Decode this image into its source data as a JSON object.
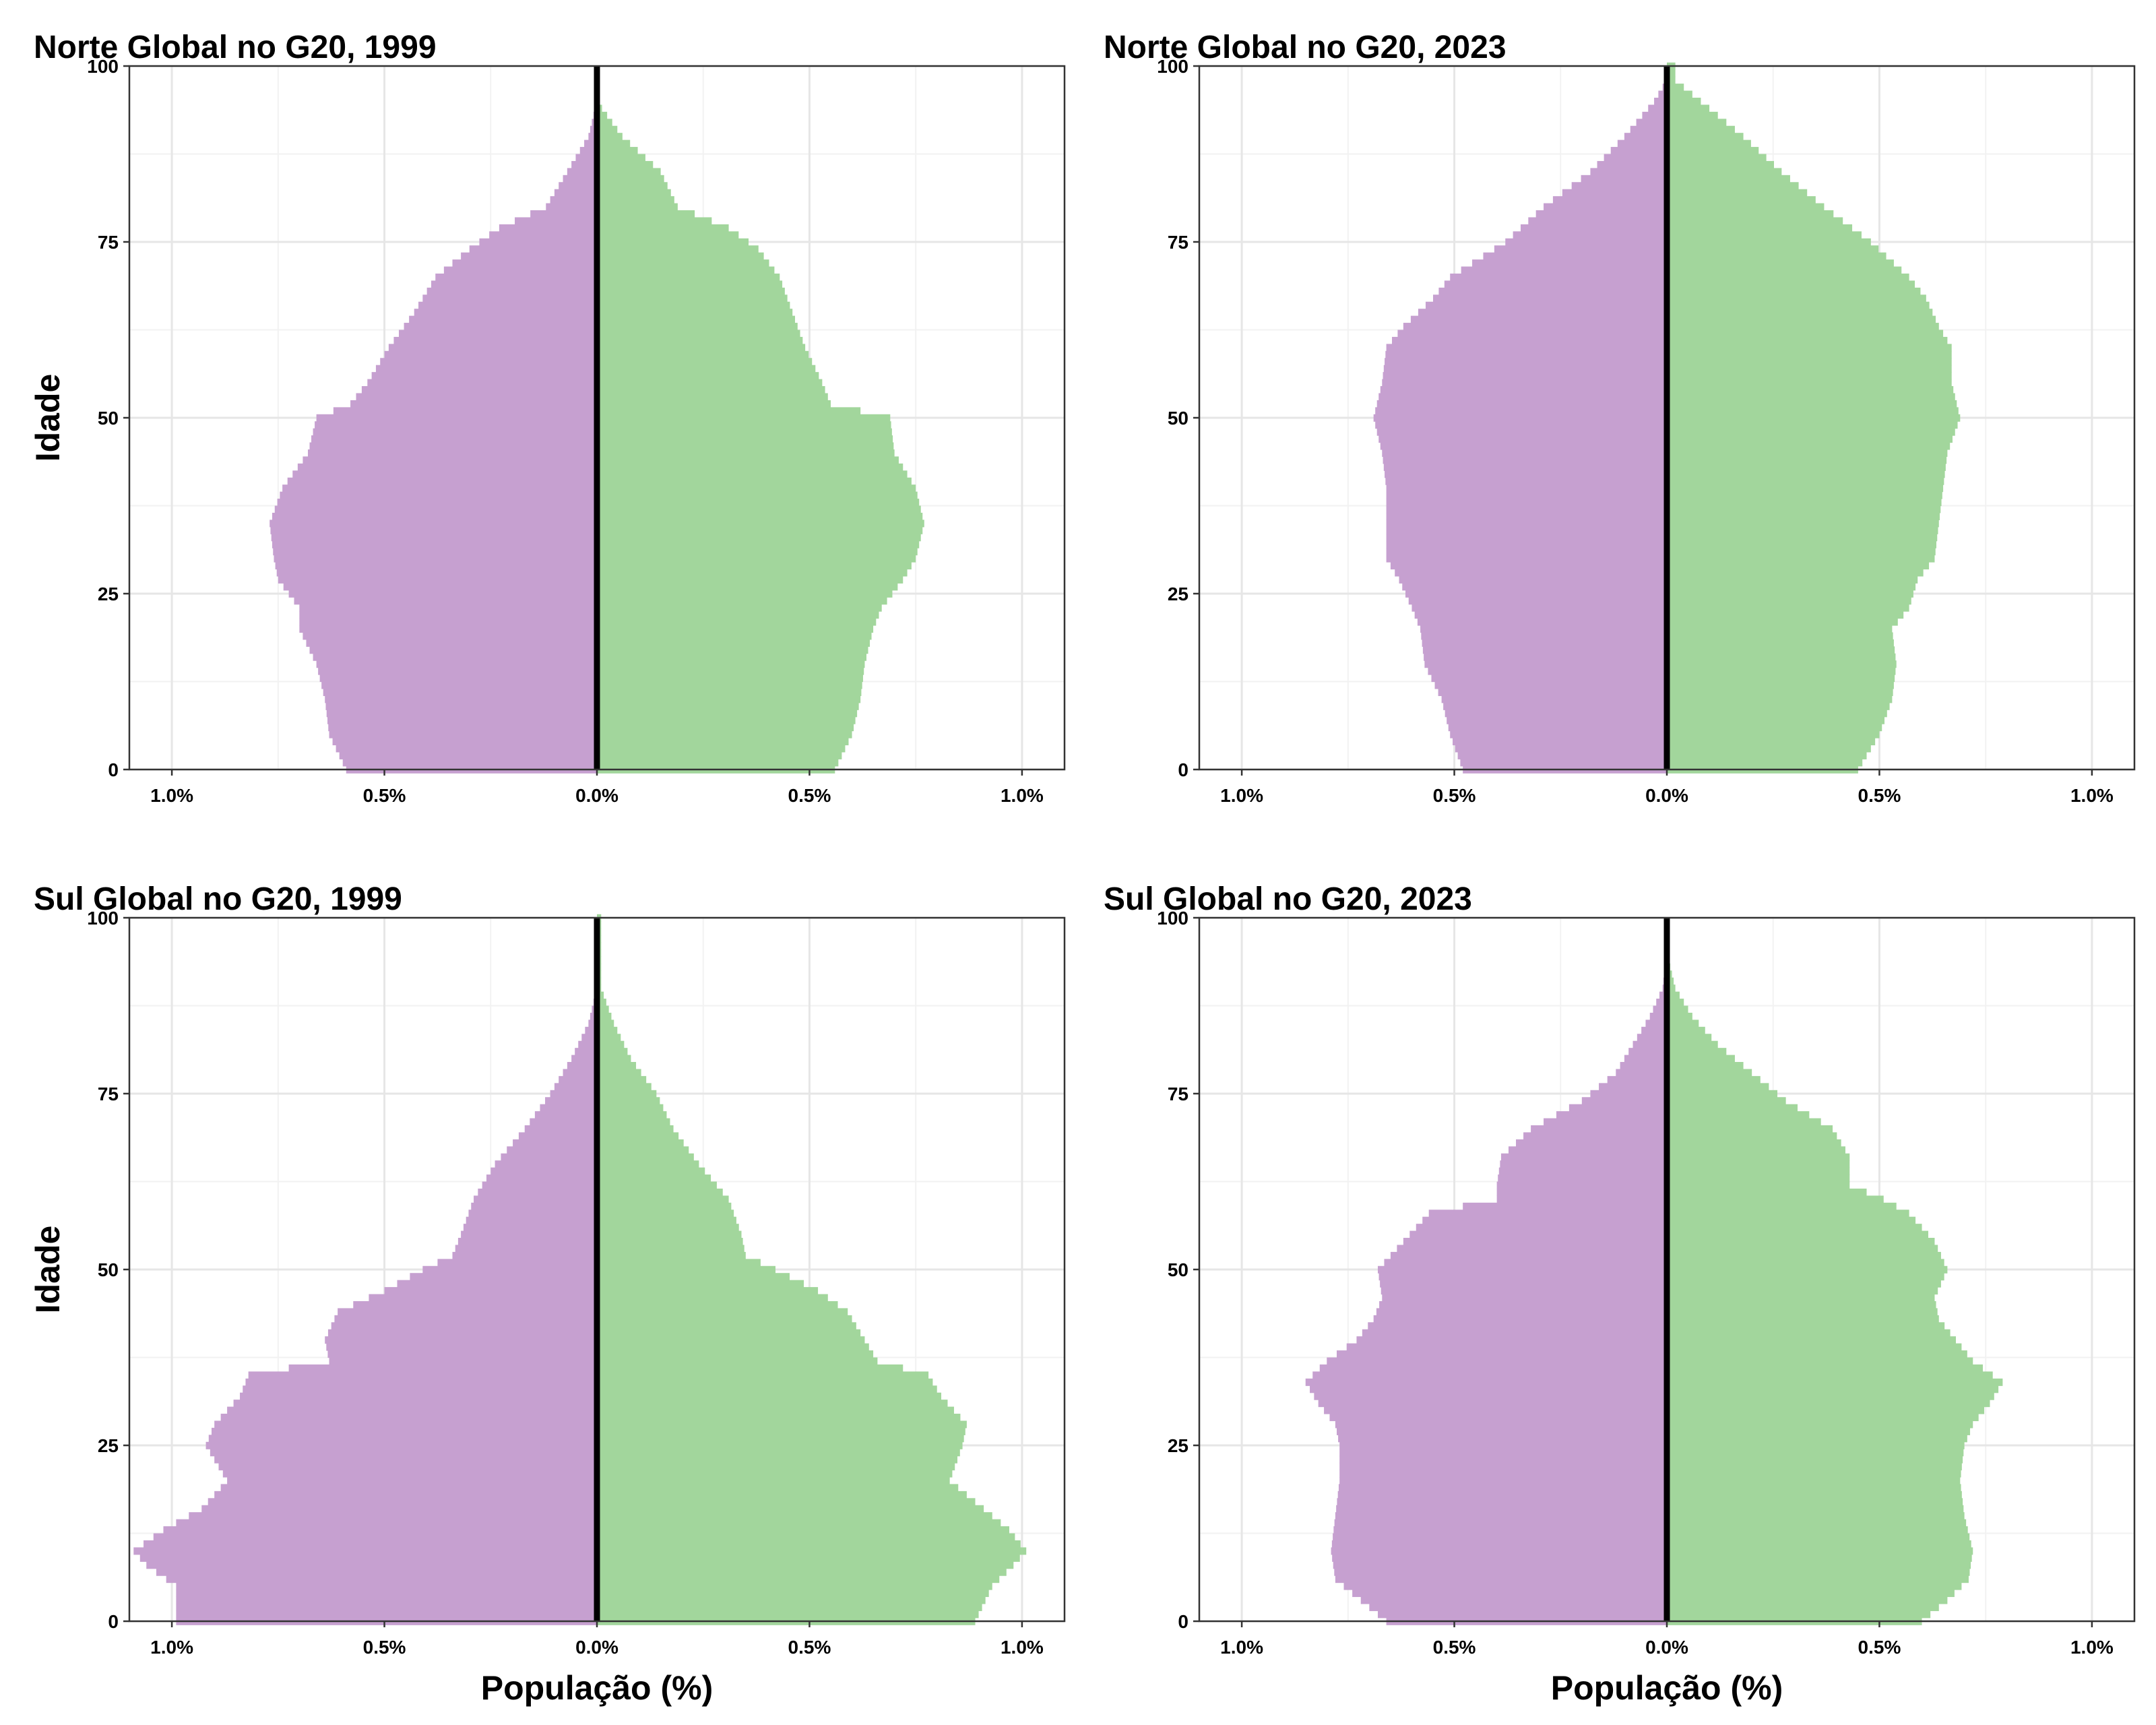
{
  "colors": {
    "left": "#c6a0d0",
    "right": "#a2d69c",
    "center_line": "#000000"
  },
  "chart_data": [
    {
      "type": "bar",
      "orientation": "horizontal-pyramid",
      "title": "Norte Global no G20, 1999",
      "ylabel": "Idade",
      "xlabel": "",
      "xlim": [
        -1.1,
        1.1
      ],
      "ylim": [
        0,
        100
      ],
      "x_ticks": [
        "1.0%",
        "0.5%",
        "0.0%",
        "0.5%",
        "1.0%"
      ],
      "y_ticks": [
        "0",
        "25",
        "50",
        "75",
        "100"
      ],
      "grid": true,
      "profile_ages": [
        0,
        5,
        10,
        15,
        20,
        23,
        27,
        30,
        35,
        40,
        45,
        50,
        52,
        55,
        60,
        65,
        70,
        74,
        77,
        80,
        85,
        90,
        95
      ],
      "series": [
        {
          "side": "left",
          "values": [
            0.59,
            0.63,
            0.64,
            0.66,
            0.7,
            0.7,
            0.75,
            0.76,
            0.77,
            0.74,
            0.68,
            0.66,
            0.58,
            0.54,
            0.49,
            0.43,
            0.38,
            0.3,
            0.23,
            0.12,
            0.07,
            0.02,
            0.0
          ]
        },
        {
          "side": "right",
          "values": [
            0.56,
            0.6,
            0.62,
            0.63,
            0.65,
            0.67,
            0.72,
            0.75,
            0.77,
            0.75,
            0.7,
            0.69,
            0.55,
            0.53,
            0.49,
            0.46,
            0.43,
            0.38,
            0.31,
            0.19,
            0.15,
            0.06,
            0.0
          ]
        }
      ]
    },
    {
      "type": "bar",
      "orientation": "horizontal-pyramid",
      "title": "Norte Global no G20, 2023",
      "ylabel": "",
      "xlabel": "",
      "xlim": [
        -1.1,
        1.1
      ],
      "ylim": [
        0,
        100
      ],
      "x_ticks": [
        "1.0%",
        "0.5%",
        "0.0%",
        "0.5%",
        "1.0%"
      ],
      "y_ticks": [
        "0",
        "25",
        "50",
        "75",
        "100"
      ],
      "grid": true,
      "profile_ages": [
        0,
        5,
        10,
        15,
        20,
        23,
        27,
        30,
        35,
        40,
        45,
        50,
        55,
        60,
        63,
        67,
        70,
        75,
        80,
        85,
        90,
        95,
        98
      ],
      "series": [
        {
          "side": "left",
          "values": [
            0.48,
            0.51,
            0.53,
            0.57,
            0.58,
            0.6,
            0.63,
            0.66,
            0.66,
            0.66,
            0.67,
            0.69,
            0.67,
            0.66,
            0.62,
            0.55,
            0.51,
            0.38,
            0.29,
            0.18,
            0.1,
            0.03,
            0.0
          ]
        },
        {
          "side": "right",
          "values": [
            0.45,
            0.5,
            0.53,
            0.54,
            0.53,
            0.57,
            0.59,
            0.63,
            0.64,
            0.65,
            0.66,
            0.69,
            0.67,
            0.67,
            0.64,
            0.61,
            0.57,
            0.48,
            0.37,
            0.27,
            0.18,
            0.08,
            0.02
          ]
        }
      ]
    },
    {
      "type": "bar",
      "orientation": "horizontal-pyramid",
      "title": "Sul Global no G20, 1999",
      "ylabel": "Idade",
      "xlabel": "População (%)",
      "xlim": [
        -1.1,
        1.1
      ],
      "ylim": [
        0,
        100
      ],
      "x_ticks": [
        "1.0%",
        "0.5%",
        "0.0%",
        "0.5%",
        "1.0%"
      ],
      "y_ticks": [
        "0",
        "25",
        "50",
        "75",
        "100"
      ],
      "grid": true,
      "profile_ages": [
        0,
        5,
        8,
        10,
        13,
        16,
        20,
        25,
        28,
        32,
        35,
        37,
        40,
        44,
        47,
        50,
        52,
        55,
        60,
        65,
        70,
        75,
        80,
        85,
        90
      ],
      "series": [
        {
          "side": "left",
          "values": [
            0.99,
            0.99,
            1.06,
            1.09,
            1.02,
            0.93,
            0.87,
            0.92,
            0.9,
            0.84,
            0.82,
            0.63,
            0.64,
            0.61,
            0.5,
            0.41,
            0.34,
            0.32,
            0.29,
            0.24,
            0.17,
            0.11,
            0.06,
            0.02,
            0.0
          ]
        },
        {
          "side": "right",
          "values": [
            0.89,
            0.93,
            0.98,
            1.01,
            0.97,
            0.91,
            0.83,
            0.86,
            0.87,
            0.81,
            0.78,
            0.66,
            0.63,
            0.59,
            0.52,
            0.42,
            0.35,
            0.34,
            0.31,
            0.24,
            0.18,
            0.14,
            0.08,
            0.04,
            0.01
          ]
        }
      ]
    },
    {
      "type": "bar",
      "orientation": "horizontal-pyramid",
      "title": "Sul Global no G20, 2023",
      "ylabel": "",
      "xlabel": "População (%)",
      "xlim": [
        -1.1,
        1.1
      ],
      "ylim": [
        0,
        100
      ],
      "x_ticks": [
        "1.0%",
        "0.5%",
        "0.0%",
        "0.5%",
        "1.0%"
      ],
      "y_ticks": [
        "0",
        "25",
        "50",
        "75",
        "100"
      ],
      "grid": true,
      "profile_ages": [
        0,
        3,
        6,
        10,
        15,
        20,
        25,
        28,
        31,
        34,
        37,
        40,
        43,
        46,
        50,
        54,
        58,
        60,
        62,
        66,
        70,
        74,
        78,
        82,
        86,
        90,
        95
      ],
      "series": [
        {
          "side": "left",
          "values": [
            0.66,
            0.72,
            0.78,
            0.79,
            0.78,
            0.77,
            0.77,
            0.78,
            0.82,
            0.85,
            0.8,
            0.73,
            0.69,
            0.67,
            0.68,
            0.62,
            0.56,
            0.4,
            0.4,
            0.39,
            0.32,
            0.2,
            0.12,
            0.08,
            0.04,
            0.01,
            0.0
          ]
        },
        {
          "side": "right",
          "values": [
            0.6,
            0.66,
            0.71,
            0.72,
            0.7,
            0.69,
            0.7,
            0.72,
            0.76,
            0.79,
            0.72,
            0.68,
            0.64,
            0.63,
            0.66,
            0.63,
            0.57,
            0.51,
            0.43,
            0.43,
            0.39,
            0.28,
            0.2,
            0.12,
            0.06,
            0.02,
            0.0
          ]
        }
      ]
    }
  ]
}
